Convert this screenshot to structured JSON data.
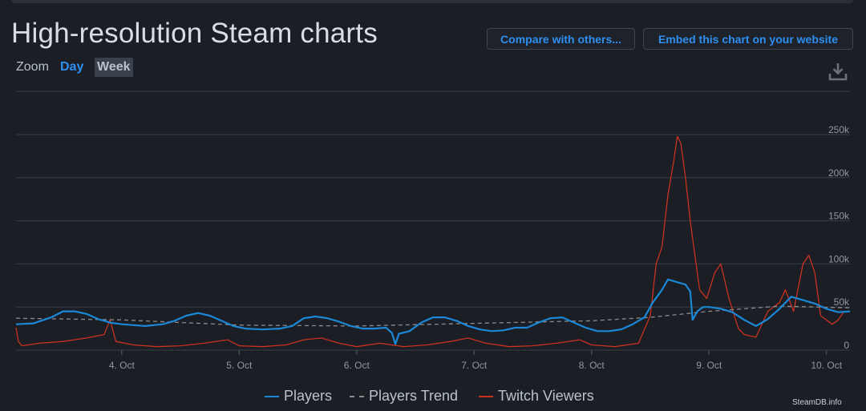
{
  "header": {
    "title": "High-resolution Steam charts",
    "compare_label": "Compare with others...",
    "embed_label": "Embed this chart on your website"
  },
  "zoom": {
    "label": "Zoom",
    "options": [
      "Day",
      "Week"
    ],
    "selected": "Week"
  },
  "icons": {
    "download": "download-icon"
  },
  "colors": {
    "players": "#1a88d6",
    "trend": "#8c8c8c",
    "twitch": "#c8321e",
    "grid": "#3a3f48",
    "axis_text": "#8f98a0"
  },
  "credit": "SteamDB.info",
  "chart_data": {
    "type": "line",
    "x_ticks": [
      "4. Oct",
      "5. Oct",
      "6. Oct",
      "7. Oct",
      "8. Oct",
      "9. Oct",
      "10. Oct"
    ],
    "xlim": [
      3.1,
      10.2
    ],
    "y_ticks": [
      "0",
      "50k",
      "100k",
      "150k",
      "200k",
      "250k"
    ],
    "ylim": [
      0,
      250000
    ],
    "grid": true,
    "legend": "bottom",
    "series": [
      {
        "name": "Players",
        "style": "solid",
        "points": [
          [
            3.1,
            30000
          ],
          [
            3.25,
            31000
          ],
          [
            3.4,
            38000
          ],
          [
            3.5,
            45000
          ],
          [
            3.6,
            45000
          ],
          [
            3.7,
            42000
          ],
          [
            3.8,
            36000
          ],
          [
            3.9,
            32000
          ],
          [
            4.0,
            30000
          ],
          [
            4.1,
            29000
          ],
          [
            4.2,
            28000
          ],
          [
            4.35,
            30000
          ],
          [
            4.45,
            34000
          ],
          [
            4.55,
            40000
          ],
          [
            4.65,
            43000
          ],
          [
            4.75,
            40000
          ],
          [
            4.85,
            34000
          ],
          [
            4.95,
            28000
          ],
          [
            5.05,
            25000
          ],
          [
            5.2,
            24000
          ],
          [
            5.35,
            25000
          ],
          [
            5.45,
            28000
          ],
          [
            5.55,
            37000
          ],
          [
            5.65,
            39000
          ],
          [
            5.75,
            37000
          ],
          [
            5.85,
            33000
          ],
          [
            5.95,
            28000
          ],
          [
            6.05,
            25000
          ],
          [
            6.15,
            25000
          ],
          [
            6.25,
            26000
          ],
          [
            6.3,
            20000
          ],
          [
            6.33,
            7000
          ],
          [
            6.36,
            19000
          ],
          [
            6.45,
            22000
          ],
          [
            6.55,
            32000
          ],
          [
            6.65,
            38000
          ],
          [
            6.75,
            38000
          ],
          [
            6.85,
            34000
          ],
          [
            6.95,
            28000
          ],
          [
            7.05,
            24000
          ],
          [
            7.15,
            22000
          ],
          [
            7.25,
            23000
          ],
          [
            7.35,
            26000
          ],
          [
            7.45,
            26000
          ],
          [
            7.55,
            32000
          ],
          [
            7.65,
            37000
          ],
          [
            7.75,
            38000
          ],
          [
            7.85,
            32000
          ],
          [
            7.95,
            26000
          ],
          [
            8.05,
            22000
          ],
          [
            8.15,
            22000
          ],
          [
            8.25,
            24000
          ],
          [
            8.35,
            30000
          ],
          [
            8.45,
            38000
          ],
          [
            8.52,
            55000
          ],
          [
            8.6,
            70000
          ],
          [
            8.65,
            82000
          ],
          [
            8.75,
            78000
          ],
          [
            8.8,
            76000
          ],
          [
            8.84,
            68000
          ],
          [
            8.86,
            35000
          ],
          [
            8.9,
            45000
          ],
          [
            8.95,
            50000
          ],
          [
            9.0,
            50000
          ],
          [
            9.1,
            48000
          ],
          [
            9.2,
            44000
          ],
          [
            9.3,
            35000
          ],
          [
            9.4,
            28000
          ],
          [
            9.5,
            36000
          ],
          [
            9.6,
            48000
          ],
          [
            9.7,
            62000
          ],
          [
            9.8,
            58000
          ],
          [
            9.9,
            54000
          ],
          [
            10.0,
            48000
          ],
          [
            10.1,
            44000
          ],
          [
            10.2,
            45000
          ]
        ]
      },
      {
        "name": "Players Trend",
        "style": "dashed",
        "points": [
          [
            3.1,
            37000
          ],
          [
            4.0,
            35000
          ],
          [
            5.0,
            29000
          ],
          [
            6.0,
            28000
          ],
          [
            7.0,
            31000
          ],
          [
            8.0,
            34000
          ],
          [
            8.5,
            38000
          ],
          [
            9.0,
            45000
          ],
          [
            9.6,
            51000
          ],
          [
            10.2,
            49000
          ]
        ]
      },
      {
        "name": "Twitch Viewers",
        "style": "solid",
        "points": [
          [
            3.1,
            26000
          ],
          [
            3.12,
            10000
          ],
          [
            3.15,
            5000
          ],
          [
            3.3,
            8000
          ],
          [
            3.5,
            10000
          ],
          [
            3.7,
            14000
          ],
          [
            3.85,
            18000
          ],
          [
            3.9,
            35000
          ],
          [
            3.95,
            10000
          ],
          [
            4.1,
            6000
          ],
          [
            4.3,
            4000
          ],
          [
            4.5,
            5000
          ],
          [
            4.7,
            8000
          ],
          [
            4.9,
            12000
          ],
          [
            5.0,
            5000
          ],
          [
            5.2,
            4000
          ],
          [
            5.4,
            6000
          ],
          [
            5.55,
            12000
          ],
          [
            5.7,
            14000
          ],
          [
            5.85,
            8000
          ],
          [
            6.0,
            4000
          ],
          [
            6.2,
            8000
          ],
          [
            6.4,
            4000
          ],
          [
            6.6,
            6000
          ],
          [
            6.8,
            10000
          ],
          [
            6.95,
            14000
          ],
          [
            7.1,
            8000
          ],
          [
            7.3,
            4000
          ],
          [
            7.5,
            5000
          ],
          [
            7.7,
            8000
          ],
          [
            7.9,
            12000
          ],
          [
            8.0,
            6000
          ],
          [
            8.2,
            4000
          ],
          [
            8.4,
            8000
          ],
          [
            8.5,
            40000
          ],
          [
            8.55,
            100000
          ],
          [
            8.6,
            120000
          ],
          [
            8.65,
            180000
          ],
          [
            8.7,
            220000
          ],
          [
            8.73,
            248000
          ],
          [
            8.76,
            240000
          ],
          [
            8.8,
            200000
          ],
          [
            8.84,
            150000
          ],
          [
            8.88,
            110000
          ],
          [
            8.92,
            70000
          ],
          [
            8.98,
            60000
          ],
          [
            9.05,
            90000
          ],
          [
            9.1,
            100000
          ],
          [
            9.17,
            60000
          ],
          [
            9.25,
            25000
          ],
          [
            9.3,
            18000
          ],
          [
            9.4,
            15000
          ],
          [
            9.5,
            45000
          ],
          [
            9.6,
            55000
          ],
          [
            9.65,
            70000
          ],
          [
            9.72,
            45000
          ],
          [
            9.8,
            100000
          ],
          [
            9.85,
            110000
          ],
          [
            9.9,
            90000
          ],
          [
            9.95,
            40000
          ],
          [
            10.05,
            30000
          ],
          [
            10.1,
            35000
          ],
          [
            10.15,
            45000
          ],
          [
            10.2,
            45000
          ]
        ]
      }
    ]
  }
}
